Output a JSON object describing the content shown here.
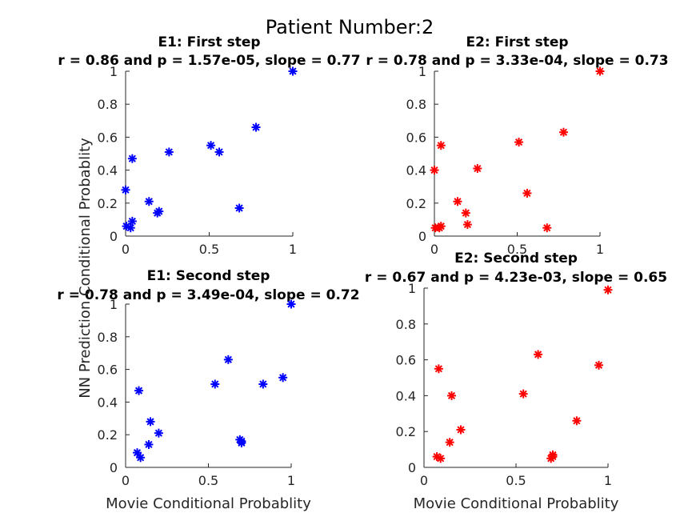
{
  "figure": {
    "suptitle": "Patient Number:2",
    "shared_ylabel": "NN Prediction Conditional Probablity"
  },
  "chart_data": [
    {
      "type": "scatter",
      "id": "e1-first",
      "title": "E1: First step",
      "subtitle": "r = 0.86 and p = 1.57e-05, slope = 0.77",
      "xlabel": "",
      "ylabel": "NN Prediction Conditional Probablity",
      "xlim": [
        0,
        1
      ],
      "ylim": [
        0,
        1
      ],
      "xticks": [
        0,
        0.5,
        1
      ],
      "xtick_labels": [
        "0",
        "0.5",
        "1"
      ],
      "yticks": [
        0,
        0.2,
        0.4,
        0.6,
        0.8,
        1
      ],
      "ytick_labels": [
        "0",
        "0.2",
        "0.4",
        "0.6",
        "0.8",
        "1"
      ],
      "grid": false,
      "marker_color": "#0000ff",
      "x": [
        0,
        0.005,
        0.03,
        0.04,
        0.04,
        0.14,
        0.19,
        0.2,
        0.26,
        0.51,
        0.56,
        0.68,
        0.78,
        1.0
      ],
      "y": [
        0.28,
        0.06,
        0.05,
        0.47,
        0.09,
        0.21,
        0.14,
        0.15,
        0.51,
        0.55,
        0.51,
        0.17,
        0.66,
        1.0
      ]
    },
    {
      "type": "scatter",
      "id": "e2-first",
      "title": "E2: First step",
      "subtitle": "r = 0.78 and p = 3.33e-04, slope = 0.73",
      "xlabel": "",
      "ylabel": "",
      "xlim": [
        0,
        1
      ],
      "ylim": [
        0,
        1
      ],
      "xticks": [
        0,
        0.5,
        1
      ],
      "xtick_labels": [
        "0",
        "0.5",
        "1"
      ],
      "yticks": [
        0,
        0.2,
        0.4,
        0.6,
        0.8,
        1
      ],
      "ytick_labels": [
        "0",
        "0.2",
        "0.4",
        "0.6",
        "0.8",
        "1"
      ],
      "grid": false,
      "marker_color": "#ff0000",
      "x": [
        0,
        0.005,
        0.03,
        0.04,
        0.04,
        0.14,
        0.19,
        0.2,
        0.26,
        0.51,
        0.56,
        0.68,
        0.78,
        1.0
      ],
      "y": [
        0.4,
        0.05,
        0.05,
        0.55,
        0.06,
        0.21,
        0.14,
        0.07,
        0.41,
        0.57,
        0.26,
        0.05,
        0.63,
        1.0
      ]
    },
    {
      "type": "scatter",
      "id": "e1-second",
      "title": "E1: Second step",
      "subtitle": "r = 0.78 and p = 3.49e-04, slope = 0.72",
      "xlabel": "Movie Conditional Probablity",
      "ylabel": "",
      "xlim": [
        0,
        1
      ],
      "ylim": [
        0,
        1
      ],
      "xticks": [
        0,
        0.5,
        1
      ],
      "xtick_labels": [
        "0",
        "0.5",
        "1"
      ],
      "yticks": [
        0,
        0.2,
        0.4,
        0.6,
        0.8,
        1
      ],
      "ytick_labels": [
        "0",
        "0.2",
        "0.4",
        "0.6",
        "0.8",
        "1"
      ],
      "grid": false,
      "marker_color": "#0000ff",
      "x": [
        0.07,
        0.08,
        0.09,
        0.14,
        0.15,
        0.2,
        0.54,
        0.62,
        0.69,
        0.7,
        0.83,
        0.95,
        1.0,
        0.7
      ],
      "y": [
        0.09,
        0.47,
        0.06,
        0.14,
        0.28,
        0.21,
        0.51,
        0.66,
        0.17,
        0.15,
        0.51,
        0.55,
        1.0,
        0.16
      ]
    },
    {
      "type": "scatter",
      "id": "e2-second",
      "title": "E2: Second step",
      "subtitle": "r = 0.67 and p = 4.23e-03, slope = 0.65",
      "xlabel": "Movie Conditional Probablity",
      "ylabel": "",
      "xlim": [
        0,
        1
      ],
      "ylim": [
        0,
        1
      ],
      "xticks": [
        0,
        0.5,
        1
      ],
      "xtick_labels": [
        "0",
        "0.5",
        "1"
      ],
      "yticks": [
        0,
        0.2,
        0.4,
        0.6,
        0.8,
        1
      ],
      "ytick_labels": [
        "0",
        "0.2",
        "0.4",
        "0.6",
        "0.8",
        "1"
      ],
      "grid": false,
      "marker_color": "#ff0000",
      "x": [
        0.07,
        0.08,
        0.09,
        0.14,
        0.15,
        0.2,
        0.54,
        0.62,
        0.69,
        0.7,
        0.83,
        0.95,
        1.0,
        0.7
      ],
      "y": [
        0.06,
        0.55,
        0.05,
        0.14,
        0.4,
        0.21,
        0.41,
        0.63,
        0.05,
        0.06,
        0.26,
        0.57,
        0.99,
        0.07
      ]
    }
  ]
}
